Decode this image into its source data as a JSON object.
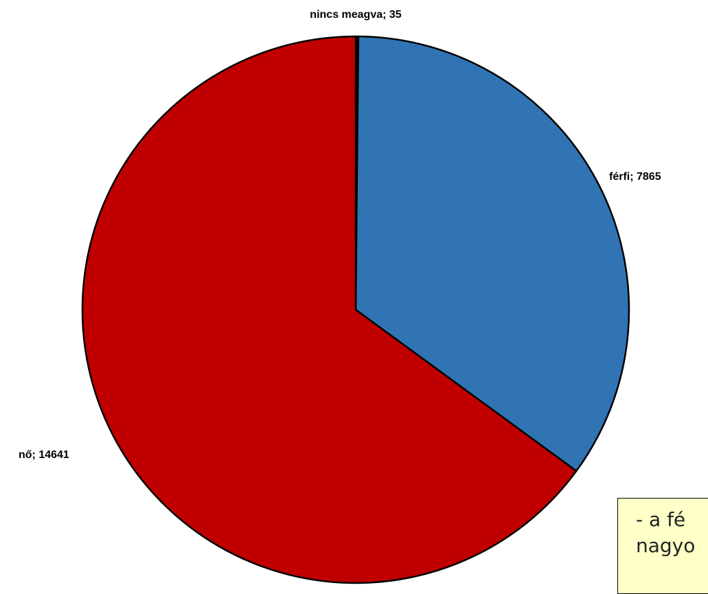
{
  "chart_data": {
    "type": "pie",
    "slices": [
      {
        "label": "nincs meagva",
        "value": 35,
        "text": "nincs meagva; 35",
        "color": "#000000"
      },
      {
        "label": "férfi",
        "value": 7865,
        "text": "férfi; 7865",
        "color": "#3074b4"
      },
      {
        "label": "nő",
        "value": 14641,
        "text": "nő; 14641",
        "color": "#c00000"
      }
    ],
    "legend": "none"
  },
  "note": {
    "line1": "- a fé",
    "line2": "nagyo"
  }
}
